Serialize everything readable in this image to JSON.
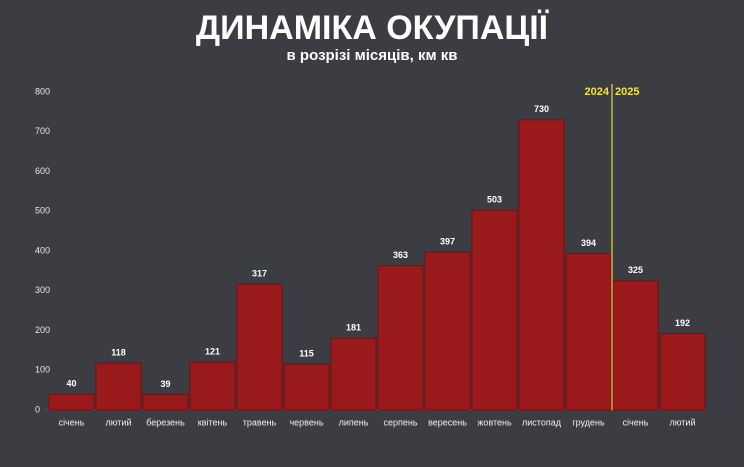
{
  "chart_data": {
    "type": "bar",
    "title": "ДИНАМІКА ОКУПАЦІЇ",
    "subtitle": "в розрізі місяців, км кв",
    "categories": [
      "січень",
      "лютий",
      "березень",
      "квітень",
      "травень",
      "червень",
      "липень",
      "серпень",
      "вересень",
      "жовтень",
      "листопад",
      "грудень",
      "січень",
      "лютий"
    ],
    "values": [
      40,
      118,
      39,
      121,
      317,
      115,
      181,
      363,
      397,
      503,
      730,
      394,
      325,
      192
    ],
    "color": "#9a1a1c",
    "ylim": [
      0,
      800
    ],
    "yticks": [
      0,
      100,
      200,
      300,
      400,
      500,
      600,
      700,
      800
    ],
    "grid": false,
    "annotations": [
      "2024",
      "2025"
    ]
  }
}
